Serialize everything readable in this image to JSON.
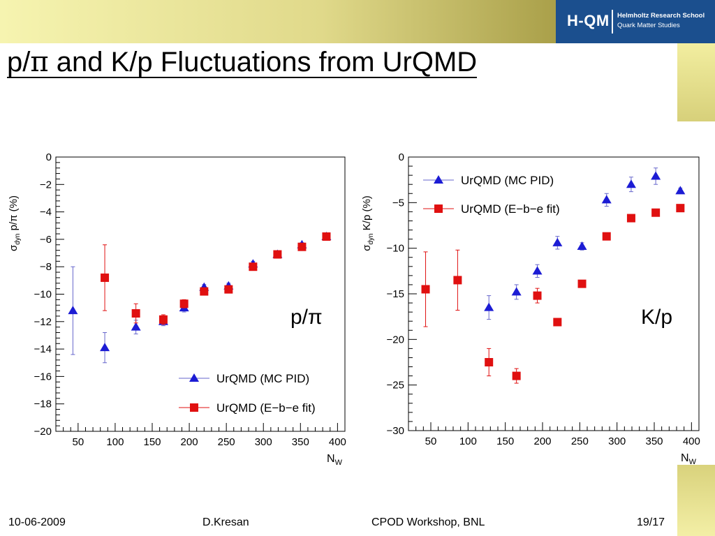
{
  "header": {
    "logo_mark": "H-QM",
    "logo_line1": "Helmholtz Research School",
    "logo_line2": "Quark Matter Studies"
  },
  "slide": {
    "title_pre": "p/",
    "title_pi": "π",
    "title_post": " and K/p Fluctuations from UrQMD"
  },
  "footer": {
    "date": "10-06-2009",
    "author": "D.Kresan",
    "event": "CPOD Workshop, BNL",
    "page": "19/17"
  },
  "colors": {
    "mc_pid": "#1c1cd4",
    "ebe_fit": "#e01010",
    "mc_pid_line": "#6666cc"
  },
  "chart_data": [
    {
      "type": "scatter",
      "panel_label": "p/π",
      "xlabel_main": "N",
      "xlabel_sub": "W",
      "ylabel": {
        "sigma": "σ",
        "sub": "dyn",
        "rest": " p/π (%)"
      },
      "xlim": [
        20,
        410
      ],
      "ylim": [
        -20,
        0
      ],
      "xticks": [
        50,
        100,
        150,
        200,
        250,
        300,
        350,
        400
      ],
      "yticks": [
        0,
        -2,
        -4,
        -6,
        -8,
        -10,
        -12,
        -14,
        -16,
        -18,
        -20
      ],
      "ytick_labels": [
        "0",
        "−2",
        "−4",
        "−6",
        "−8",
        "−10",
        "−12",
        "−14",
        "−16",
        "−18",
        "−20"
      ],
      "legend_position": "bottom-right",
      "series": [
        {
          "name": "UrQMD (MC PID)",
          "marker": "triangle",
          "points": [
            {
              "x": 43,
              "y": -11.2,
              "yerr": 3.2
            },
            {
              "x": 86,
              "y": -13.9,
              "yerr": 1.1
            },
            {
              "x": 128,
              "y": -12.4,
              "yerr": 0.5
            },
            {
              "x": 165,
              "y": -12.0,
              "yerr": 0.3
            },
            {
              "x": 193,
              "y": -11.0,
              "yerr": 0.3
            },
            {
              "x": 220,
              "y": -9.5,
              "yerr": 0.2
            },
            {
              "x": 253,
              "y": -9.4,
              "yerr": 0.2
            },
            {
              "x": 286,
              "y": -7.8,
              "yerr": 0.2
            },
            {
              "x": 319,
              "y": -7.1,
              "yerr": 0.15
            },
            {
              "x": 352,
              "y": -6.4,
              "yerr": 0.15
            },
            {
              "x": 385,
              "y": -5.8,
              "yerr": 0.15
            }
          ]
        },
        {
          "name": "UrQMD (E−b−e fit)",
          "marker": "square",
          "points": [
            {
              "x": 86,
              "y": -8.8,
              "yerr": 2.4
            },
            {
              "x": 128,
              "y": -11.4,
              "yerr": 0.7
            },
            {
              "x": 165,
              "y": -11.85,
              "yerr": 0.35
            },
            {
              "x": 193,
              "y": -10.7,
              "yerr": 0.3
            },
            {
              "x": 220,
              "y": -9.8,
              "yerr": 0.25
            },
            {
              "x": 253,
              "y": -9.65,
              "yerr": 0.25
            },
            {
              "x": 286,
              "y": -8.0,
              "yerr": 0.2
            },
            {
              "x": 319,
              "y": -7.1,
              "yerr": 0.2
            },
            {
              "x": 352,
              "y": -6.55,
              "yerr": 0.2
            },
            {
              "x": 385,
              "y": -5.8,
              "yerr": 0.2
            }
          ]
        }
      ]
    },
    {
      "type": "scatter",
      "panel_label": "K/p",
      "xlabel_main": "N",
      "xlabel_sub": "W",
      "ylabel": {
        "sigma": "σ",
        "sub": "dyn",
        "rest": " K/p (%)"
      },
      "xlim": [
        20,
        410
      ],
      "ylim": [
        -30,
        0
      ],
      "xticks": [
        50,
        100,
        150,
        200,
        250,
        300,
        350,
        400
      ],
      "yticks": [
        0,
        -5,
        -10,
        -15,
        -20,
        -25,
        -30
      ],
      "ytick_labels": [
        "0",
        "−5",
        "−10",
        "−15",
        "−20",
        "−25",
        "−30"
      ],
      "legend_position": "top-left",
      "series": [
        {
          "name": "UrQMD (MC PID)",
          "marker": "triangle",
          "points": [
            {
              "x": 128,
              "y": -16.5,
              "yerr": 1.3
            },
            {
              "x": 165,
              "y": -14.8,
              "yerr": 0.8
            },
            {
              "x": 193,
              "y": -12.5,
              "yerr": 0.7
            },
            {
              "x": 220,
              "y": -9.4,
              "yerr": 0.7
            },
            {
              "x": 253,
              "y": -9.8,
              "yerr": 0.4
            },
            {
              "x": 286,
              "y": -4.7,
              "yerr": 0.7
            },
            {
              "x": 319,
              "y": -3.0,
              "yerr": 0.8
            },
            {
              "x": 352,
              "y": -2.1,
              "yerr": 0.9
            },
            {
              "x": 385,
              "y": -3.7,
              "yerr": 0.3
            }
          ]
        },
        {
          "name": "UrQMD (E−b−e fit)",
          "marker": "square",
          "points": [
            {
              "x": 43,
              "y": -14.5,
              "yerr": 4.1
            },
            {
              "x": 86,
              "y": -13.5,
              "yerr": 3.3
            },
            {
              "x": 128,
              "y": -22.5,
              "yerr": 1.5
            },
            {
              "x": 165,
              "y": -24.0,
              "yerr": 0.8
            },
            {
              "x": 193,
              "y": -15.2,
              "yerr": 0.8
            },
            {
              "x": 220,
              "y": -18.1,
              "yerr": 0.3
            },
            {
              "x": 253,
              "y": -13.9,
              "yerr": 0.3
            },
            {
              "x": 286,
              "y": -8.7,
              "yerr": 0.3
            },
            {
              "x": 319,
              "y": -6.7,
              "yerr": 0.3
            },
            {
              "x": 352,
              "y": -6.1,
              "yerr": 0.3
            },
            {
              "x": 385,
              "y": -5.6,
              "yerr": 0.3
            }
          ]
        }
      ]
    }
  ]
}
